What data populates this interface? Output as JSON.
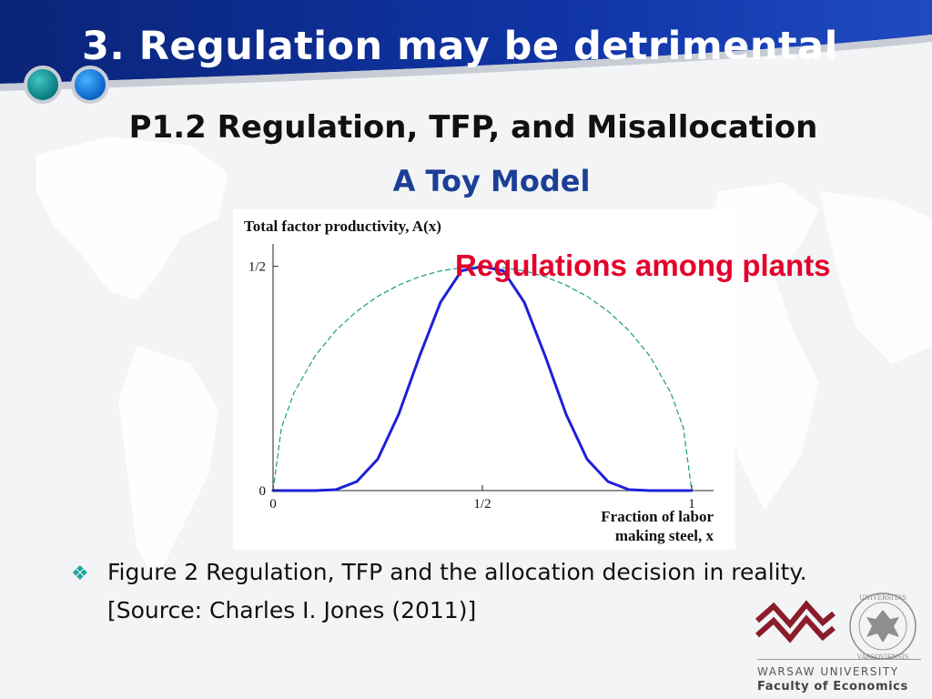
{
  "slide": {
    "title": "3. Regulation may be detrimental",
    "subtitle": "P1.2 Regulation, TFP, and Misallocation",
    "section_heading": "A Toy Model",
    "callout": "Regulations among plants",
    "bullet_icon": "diamond-four-icon",
    "bullet_text": "Figure 2 Regulation, TFP and the allocation decision in reality.",
    "bullet_source": "[Source: Charles I. Jones (2011)]",
    "colors": {
      "header": "#0c2b8c",
      "accent_red": "#e4002b",
      "teal": "#1aa7a0",
      "curve": "#1d20d8",
      "dashed": "#1a9a86"
    }
  },
  "footer": {
    "university": "WARSAW UNIVERSITY",
    "faculty": "Faculty of Economics",
    "seal_text": "UNIVERSITAS VARSOVIENSIS"
  },
  "chart_data": {
    "type": "line",
    "title": "Total factor productivity, A(x)",
    "xlabel_line1": "Fraction of labor",
    "xlabel_line2": "making steel, x",
    "xlim": [
      0,
      1
    ],
    "ylim": [
      0,
      0.55
    ],
    "x_ticks": [
      {
        "value": 0,
        "label": "0"
      },
      {
        "value": 0.5,
        "label": "1/2"
      },
      {
        "value": 1,
        "label": "1"
      }
    ],
    "y_ticks": [
      {
        "value": 0,
        "label": "0"
      },
      {
        "value": 0.5,
        "label": "1/2"
      }
    ],
    "series": [
      {
        "style": "solid",
        "x": [
          0,
          0.05,
          0.1,
          0.15,
          0.2,
          0.25,
          0.3,
          0.35,
          0.4,
          0.45,
          0.5,
          0.55,
          0.6,
          0.65,
          0.7,
          0.75,
          0.8,
          0.85,
          0.9,
          0.95,
          1
        ],
        "y": [
          0,
          0,
          0,
          0.002,
          0.02,
          0.07,
          0.17,
          0.3,
          0.42,
          0.49,
          0.5,
          0.49,
          0.42,
          0.3,
          0.17,
          0.07,
          0.02,
          0.002,
          0,
          0,
          0
        ]
      },
      {
        "style": "dashed",
        "x": [
          0,
          0.02,
          0.05,
          0.1,
          0.15,
          0.2,
          0.25,
          0.3,
          0.35,
          0.4,
          0.45,
          0.5,
          0.55,
          0.6,
          0.65,
          0.7,
          0.75,
          0.8,
          0.85,
          0.9,
          0.95,
          0.98,
          1
        ],
        "y": [
          0,
          0.14,
          0.218,
          0.3,
          0.357,
          0.4,
          0.433,
          0.458,
          0.477,
          0.49,
          0.497,
          0.5,
          0.497,
          0.49,
          0.477,
          0.458,
          0.433,
          0.4,
          0.357,
          0.3,
          0.218,
          0.14,
          0
        ]
      }
    ]
  }
}
